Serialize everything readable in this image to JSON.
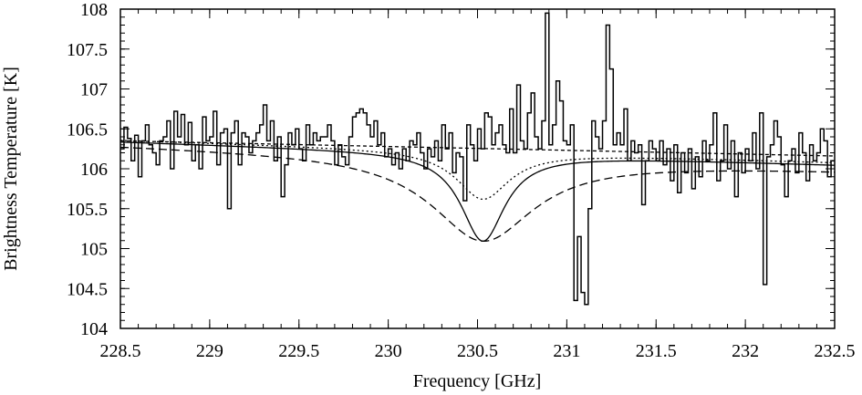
{
  "chart_data": {
    "type": "line",
    "xlabel": "Frequency [GHz]",
    "ylabel": "Brightness Temperature [K]",
    "xlim": [
      228.5,
      232.5
    ],
    "ylim": [
      104,
      108
    ],
    "x_ticks": [
      "228.5",
      "229",
      "229.5",
      "230",
      "230.5",
      "231",
      "231.5",
      "232",
      "232.5"
    ],
    "y_ticks": [
      "104",
      "104.5",
      "105",
      "105.5",
      "106",
      "106.5",
      "107",
      "107.5",
      "108"
    ],
    "grid": false,
    "legend": "none",
    "spectrum": {
      "style": "steps",
      "color": "#000000",
      "x_start": 228.5,
      "x_step": 0.02,
      "values": [
        106.25,
        106.52,
        106.38,
        106.1,
        106.42,
        105.9,
        106.35,
        106.55,
        106.3,
        106.2,
        106.05,
        106.35,
        106.4,
        106.6,
        106.0,
        106.72,
        106.4,
        106.68,
        106.3,
        106.58,
        106.1,
        106.3,
        106.0,
        106.65,
        106.35,
        106.4,
        106.72,
        106.05,
        106.45,
        106.2,
        106.3,
        106.1,
        105.95,
        106.25,
        106.0,
        106.4,
        106.2,
        106.35,
        106.45,
        106.55,
        106.8,
        106.35,
        106.6,
        106.1,
        106.4,
        106.3,
        106.05,
        106.2,
        106.5,
        106.2,
        106.0,
        106.3,
        106.1,
        106.35,
        106.55,
        106.65,
        106.2,
        106.4,
        106.55,
        106.35,
        106.05,
        106.3,
        106.15,
        106.05,
        106.55,
        106.35,
        106.95,
        106.55,
        106.2,
        105.5,
        106.4,
        106.25,
        106.15,
        106.1,
        105.85,
        106.55,
        106.25,
        106.45,
        106.2,
        106.3,
        106.3,
        106.1,
        106.3,
        106.4,
        106.45,
        106.05,
        105.7,
        106.25,
        105.9,
        106.3,
        106.15,
        106.3,
        106.45,
        106.5,
        106.85,
        106.35,
        106.2,
        106.15,
        106.0,
        106.05,
        106.25,
        106.15,
        106.35,
        105.85,
        106.0,
        106.15,
        106.5,
        106.2,
        106.3,
        106.35,
        106.55,
        106.3,
        106.05,
        106.2,
        106.5,
        106.25,
        106.35,
        105.85,
        106.0,
        106.15,
        106.3,
        106.45,
        106.5,
        106.55,
        106.2,
        106.5,
        106.55,
        106.95,
        106.4,
        106.3,
        106.25,
        106.1,
        106.35,
        106.5,
        106.6,
        106.35,
        106.15,
        106.3,
        106.4,
        106.25,
        106.45,
        106.3,
        106.25,
        106.45,
        106.3,
        106.15,
        106.55,
        106.2,
        106.3,
        106.4,
        106.3,
        106.25,
        106.15,
        106.45,
        105.9,
        106.2,
        106.3,
        106.0,
        106.25,
        106.3,
        106.4,
        106.2,
        106.3,
        106.1,
        106.55,
        106.35,
        106.25,
        106.3,
        106.15,
        106.2,
        106.3,
        106.45,
        106.15,
        106.4,
        106.25,
        106.1,
        106.3,
        106.15,
        106.05,
        106.25,
        106.3,
        106.35,
        106.2,
        106.3,
        106.1,
        106.35,
        106.1,
        106.25,
        106.3,
        106.2,
        106.15,
        106.1,
        106.05,
        106.2,
        106.35,
        106.15
      ],
      "value_overrides": {
        "29": 106.5,
        "30": 105.5,
        "31": 106.45,
        "32": 106.6,
        "33": 106.05,
        "34": 106.45,
        "45": 105.65,
        "47": 106.45,
        "48": 106.3,
        "49": 106.5,
        "50": 106.25,
        "51": 106.1,
        "52": 106.55,
        "53": 106.3,
        "54": 106.45,
        "55": 106.35,
        "56": 106.4,
        "64": 106.4,
        "65": 106.65,
        "66": 106.7,
        "67": 106.75,
        "68": 106.7,
        "69": 106.55,
        "70": 106.4,
        "71": 106.6,
        "72": 106.3,
        "73": 106.45,
        "74": 106.15,
        "75": 106.25,
        "76": 106.05,
        "77": 106.2,
        "78": 106.0,
        "79": 106.25,
        "80": 106.1,
        "81": 106.35,
        "82": 106.3,
        "83": 106.45,
        "84": 106.2,
        "85": 106.0,
        "86": 106.25,
        "87": 106.15,
        "88": 106.35,
        "89": 106.1,
        "90": 106.55,
        "91": 106.25,
        "92": 106.45,
        "93": 105.95,
        "94": 106.2,
        "95": 106.15,
        "96": 105.6,
        "97": 106.55,
        "98": 106.3,
        "99": 106.1,
        "100": 106.5,
        "101": 106.25,
        "102": 106.7,
        "103": 106.65,
        "104": 106.3,
        "105": 106.45,
        "106": 106.55,
        "107": 106.3,
        "108": 106.2,
        "109": 106.75,
        "110": 106.2,
        "111": 107.05,
        "112": 106.35,
        "113": 106.25,
        "114": 106.7,
        "115": 106.95,
        "116": 106.4,
        "117": 106.25,
        "118": 106.6,
        "119": 107.95,
        "120": 106.3,
        "121": 106.55,
        "122": 107.1,
        "123": 106.85,
        "124": 106.35,
        "125": 106.3,
        "126": 106.55,
        "127": 104.35,
        "128": 105.15,
        "129": 104.45,
        "130": 104.3,
        "131": 105.5,
        "132": 106.6,
        "133": 106.4,
        "134": 106.25,
        "135": 106.6,
        "136": 107.8,
        "137": 107.25,
        "138": 106.3,
        "139": 106.45,
        "140": 106.3,
        "141": 106.75,
        "142": 106.1,
        "143": 106.35,
        "144": 106.2,
        "145": 106.3,
        "146": 105.55,
        "147": 106.1,
        "148": 106.35,
        "149": 106.25,
        "150": 106.1,
        "151": 106.35,
        "152": 106.05,
        "153": 106.25,
        "154": 105.85,
        "155": 106.3,
        "156": 105.7,
        "157": 106.2,
        "158": 105.95,
        "159": 106.25,
        "160": 105.75,
        "161": 106.15,
        "162": 105.9,
        "163": 106.35,
        "164": 106.1,
        "165": 106.3,
        "166": 106.7,
        "167": 105.85,
        "168": 106.1,
        "169": 106.55,
        "170": 106.0,
        "171": 106.35,
        "172": 105.65,
        "173": 106.2,
        "174": 105.95,
        "175": 106.25,
        "176": 106.1,
        "177": 106.45,
        "178": 106.0,
        "179": 106.7,
        "180": 104.55,
        "181": 106.15,
        "182": 106.3,
        "183": 106.6,
        "184": 106.4,
        "185": 106.05,
        "186": 105.65,
        "187": 106.1,
        "188": 106.25,
        "189": 105.95,
        "190": 106.45,
        "191": 106.2,
        "192": 105.85,
        "193": 106.3,
        "194": 106.1,
        "195": 106.2,
        "196": 106.5,
        "197": 106.35,
        "198": 105.9,
        "199": 106.1,
        "200": 106.0
      }
    },
    "models": [
      {
        "name": "",
        "style": "solid",
        "dash": "",
        "color": "#000000",
        "baseline_start": 106.34,
        "baseline_end": 106.05,
        "center": 230.53,
        "depth": 1.1,
        "width": 0.15
      },
      {
        "name": "",
        "style": "dashed",
        "dash": "9 5",
        "color": "#000000",
        "baseline_start": 106.3,
        "baseline_end": 105.99,
        "center": 230.53,
        "depth": 1.05,
        "width": 0.35
      },
      {
        "name": "",
        "style": "dotted",
        "dash": "2 3",
        "color": "#000000",
        "baseline_start": 106.36,
        "baseline_end": 106.08,
        "center": 230.53,
        "depth": 0.6,
        "width": 0.18
      },
      {
        "name": "",
        "style": "short-dash",
        "dash": "4 3",
        "color": "#000000",
        "baseline_start": 106.35,
        "baseline_end": 106.16,
        "center": 230.53,
        "depth": 0.0,
        "width": 0.2
      }
    ]
  }
}
